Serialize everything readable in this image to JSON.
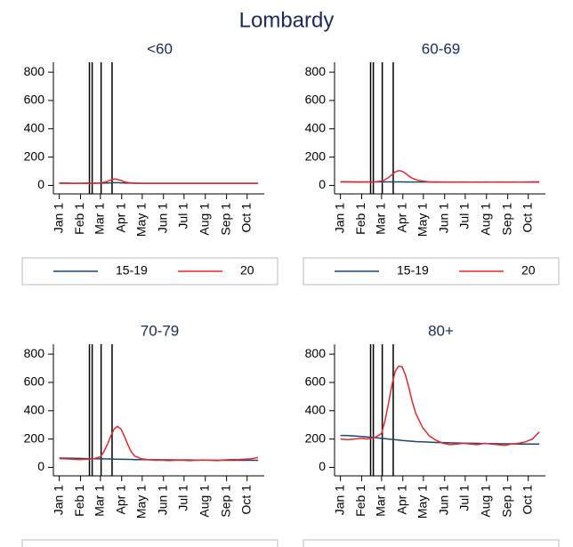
{
  "title": "Lombardy",
  "chart_data": [
    {
      "type": "line",
      "title": "<60",
      "x": [
        1,
        11,
        21,
        31,
        41,
        51,
        61,
        66,
        71,
        76,
        81,
        86,
        91,
        96,
        101,
        106,
        111,
        121,
        131,
        141,
        151,
        161,
        171,
        181,
        191,
        201,
        211,
        221,
        231,
        241,
        251,
        261,
        271,
        281,
        291
      ],
      "series": [
        {
          "name": "15-19",
          "color": "#1a476f",
          "values": [
            16,
            16,
            15,
            15,
            16,
            15,
            16,
            16,
            17,
            18,
            19,
            19,
            18,
            17,
            16,
            16,
            15,
            15,
            15,
            15,
            15,
            15,
            15,
            15,
            15,
            15,
            15,
            15,
            15,
            15,
            15,
            15,
            15,
            15,
            15
          ]
        },
        {
          "name": "20",
          "color": "#e8272a",
          "values": [
            15,
            15,
            15,
            15,
            15,
            16,
            18,
            22,
            28,
            38,
            45,
            42,
            35,
            25,
            20,
            18,
            16,
            15,
            15,
            15,
            15,
            15,
            15,
            15,
            15,
            15,
            15,
            15,
            15,
            15,
            15,
            15,
            15,
            15,
            15
          ]
        }
      ],
      "vlines": [
        45,
        49,
        62,
        78
      ],
      "xlim": [
        -5,
        300
      ],
      "ylim": [
        -60,
        870
      ],
      "yticks": [
        0,
        200,
        400,
        600,
        800
      ],
      "xticks": [
        {
          "value": 1,
          "label": "Jan 1"
        },
        {
          "value": 32,
          "label": "Feb 1"
        },
        {
          "value": 61,
          "label": "Mar 1"
        },
        {
          "value": 92,
          "label": "Apr 1"
        },
        {
          "value": 122,
          "label": "May 1"
        },
        {
          "value": 153,
          "label": "Jun 1"
        },
        {
          "value": 183,
          "label": "Jul 1"
        },
        {
          "value": 214,
          "label": "Aug 1"
        },
        {
          "value": 245,
          "label": "Sep 1"
        },
        {
          "value": 275,
          "label": "Oct 1"
        }
      ]
    },
    {
      "type": "line",
      "title": "60-69",
      "x": [
        1,
        11,
        21,
        31,
        41,
        51,
        61,
        66,
        71,
        76,
        81,
        86,
        91,
        96,
        101,
        106,
        111,
        121,
        131,
        141,
        151,
        161,
        171,
        181,
        191,
        201,
        211,
        221,
        231,
        241,
        251,
        261,
        271,
        281,
        291
      ],
      "series": [
        {
          "name": "15-19",
          "color": "#1a476f",
          "values": [
            26,
            26,
            25,
            25,
            25,
            25,
            25,
            25,
            25,
            25,
            25,
            25,
            25,
            24,
            24,
            24,
            24,
            24,
            24,
            23,
            23,
            23,
            23,
            23,
            23,
            23,
            23,
            23,
            23,
            23,
            23,
            23,
            23,
            23,
            23
          ]
        },
        {
          "name": "20",
          "color": "#e8272a",
          "values": [
            25,
            24,
            24,
            23,
            24,
            25,
            30,
            40,
            55,
            75,
            95,
            105,
            100,
            85,
            65,
            50,
            40,
            30,
            25,
            25,
            24,
            24,
            24,
            24,
            23,
            24,
            24,
            23,
            24,
            24,
            24,
            23,
            24,
            25,
            26
          ]
        }
      ],
      "vlines": [
        45,
        49,
        62,
        78
      ],
      "xlim": [
        -5,
        300
      ],
      "ylim": [
        -60,
        870
      ],
      "yticks": [
        0,
        200,
        400,
        600,
        800
      ],
      "xticks": [
        {
          "value": 1,
          "label": "Jan 1"
        },
        {
          "value": 32,
          "label": "Feb 1"
        },
        {
          "value": 61,
          "label": "Mar 1"
        },
        {
          "value": 92,
          "label": "Apr 1"
        },
        {
          "value": 122,
          "label": "May 1"
        },
        {
          "value": 153,
          "label": "Jun 1"
        },
        {
          "value": 183,
          "label": "Jul 1"
        },
        {
          "value": 214,
          "label": "Aug 1"
        },
        {
          "value": 245,
          "label": "Sep 1"
        },
        {
          "value": 275,
          "label": "Oct 1"
        }
      ]
    },
    {
      "type": "line",
      "title": "70-79",
      "x": [
        1,
        11,
        21,
        31,
        41,
        51,
        61,
        66,
        71,
        76,
        81,
        86,
        91,
        96,
        101,
        106,
        111,
        121,
        131,
        141,
        151,
        161,
        171,
        181,
        191,
        201,
        211,
        221,
        231,
        241,
        251,
        261,
        271,
        281,
        291
      ],
      "series": [
        {
          "name": "15-19",
          "color": "#1a476f",
          "values": [
            66,
            65,
            64,
            63,
            62,
            61,
            60,
            60,
            59,
            59,
            58,
            58,
            57,
            57,
            56,
            56,
            55,
            55,
            54,
            54,
            53,
            53,
            52,
            52,
            52,
            51,
            51,
            51,
            50,
            50,
            50,
            50,
            50,
            50,
            50
          ]
        },
        {
          "name": "20",
          "color": "#e8272a",
          "values": [
            62,
            60,
            58,
            55,
            58,
            60,
            75,
            110,
            160,
            220,
            270,
            290,
            270,
            220,
            160,
            110,
            80,
            60,
            55,
            50,
            50,
            48,
            50,
            50,
            48,
            50,
            52,
            50,
            48,
            52,
            55,
            55,
            58,
            60,
            70
          ]
        }
      ],
      "vlines": [
        45,
        49,
        62,
        78
      ],
      "xlim": [
        -5,
        300
      ],
      "ylim": [
        -60,
        870
      ],
      "yticks": [
        0,
        200,
        400,
        600,
        800
      ],
      "xticks": [
        {
          "value": 1,
          "label": "Jan 1"
        },
        {
          "value": 32,
          "label": "Feb 1"
        },
        {
          "value": 61,
          "label": "Mar 1"
        },
        {
          "value": 92,
          "label": "Apr 1"
        },
        {
          "value": 122,
          "label": "May 1"
        },
        {
          "value": 153,
          "label": "Jun 1"
        },
        {
          "value": 183,
          "label": "Jul 1"
        },
        {
          "value": 214,
          "label": "Aug 1"
        },
        {
          "value": 245,
          "label": "Sep 1"
        },
        {
          "value": 275,
          "label": "Oct 1"
        }
      ]
    },
    {
      "type": "line",
      "title": "80+",
      "x": [
        1,
        11,
        21,
        31,
        41,
        51,
        61,
        66,
        71,
        76,
        81,
        86,
        91,
        96,
        101,
        106,
        111,
        121,
        131,
        141,
        151,
        161,
        171,
        181,
        191,
        201,
        211,
        221,
        231,
        241,
        251,
        261,
        271,
        281,
        291
      ],
      "series": [
        {
          "name": "15-19",
          "color": "#1a476f",
          "values": [
            225,
            225,
            222,
            218,
            214,
            210,
            205,
            203,
            200,
            198,
            195,
            193,
            190,
            188,
            186,
            184,
            182,
            180,
            178,
            176,
            175,
            173,
            172,
            171,
            170,
            169,
            168,
            168,
            167,
            166,
            166,
            165,
            165,
            165,
            165
          ]
        },
        {
          "name": "20",
          "color": "#e8272a",
          "values": [
            200,
            195,
            200,
            205,
            200,
            210,
            240,
            330,
            450,
            580,
            680,
            715,
            710,
            650,
            560,
            460,
            380,
            280,
            220,
            190,
            170,
            160,
            165,
            170,
            165,
            160,
            170,
            165,
            160,
            155,
            165,
            170,
            180,
            200,
            250
          ]
        }
      ],
      "vlines": [
        45,
        49,
        62,
        78
      ],
      "xlim": [
        -5,
        300
      ],
      "ylim": [
        -60,
        870
      ],
      "yticks": [
        0,
        200,
        400,
        600,
        800
      ],
      "xticks": [
        {
          "value": 1,
          "label": "Jan 1"
        },
        {
          "value": 32,
          "label": "Feb 1"
        },
        {
          "value": 61,
          "label": "Mar 1"
        },
        {
          "value": 92,
          "label": "Apr 1"
        },
        {
          "value": 122,
          "label": "May 1"
        },
        {
          "value": 153,
          "label": "Jun 1"
        },
        {
          "value": 183,
          "label": "Jul 1"
        },
        {
          "value": 214,
          "label": "Aug 1"
        },
        {
          "value": 245,
          "label": "Sep 1"
        },
        {
          "value": 275,
          "label": "Oct 1"
        }
      ]
    }
  ]
}
